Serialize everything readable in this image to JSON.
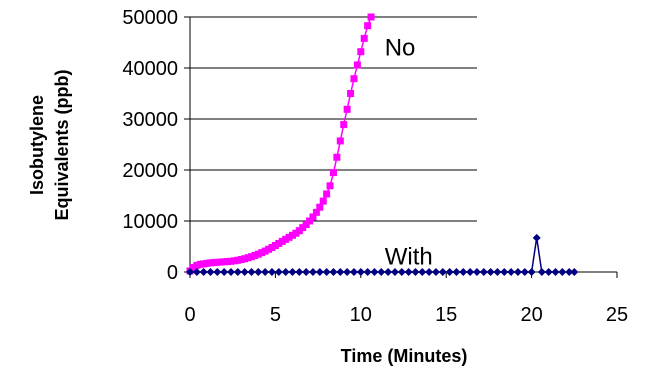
{
  "chart_data": {
    "type": "line",
    "title": "",
    "xlabel": "Time (Minutes)",
    "ylabel_lines": [
      "Isobutylene",
      "Equivalents (ppb)"
    ],
    "xlim": [
      0,
      25
    ],
    "ylim": [
      0,
      50000
    ],
    "x_ticks": [
      "0",
      "5",
      "10",
      "15",
      "20",
      "25"
    ],
    "y_ticks": [
      "0",
      "10000",
      "20000",
      "30000",
      "40000",
      "50000"
    ],
    "grid": "horizontal",
    "legend": "none",
    "annotations": [
      {
        "text": "No",
        "x": 11.4,
        "y": 44000
      },
      {
        "text": "With",
        "x": 11.4,
        "y": 3000
      }
    ],
    "series": [
      {
        "color": "#ff00ff",
        "marker": "square",
        "points": [
          [
            0,
            200
          ],
          [
            0.2,
            900
          ],
          [
            0.4,
            1300
          ],
          [
            0.6,
            1500
          ],
          [
            0.8,
            1600
          ],
          [
            1.0,
            1700
          ],
          [
            1.2,
            1800
          ],
          [
            1.4,
            1850
          ],
          [
            1.6,
            1900
          ],
          [
            1.8,
            1950
          ],
          [
            2.0,
            2000
          ],
          [
            2.2,
            2050
          ],
          [
            2.4,
            2100
          ],
          [
            2.6,
            2200
          ],
          [
            2.8,
            2300
          ],
          [
            3.0,
            2450
          ],
          [
            3.2,
            2600
          ],
          [
            3.4,
            2800
          ],
          [
            3.6,
            3000
          ],
          [
            3.8,
            3250
          ],
          [
            4.0,
            3500
          ],
          [
            4.2,
            3800
          ],
          [
            4.4,
            4100
          ],
          [
            4.6,
            4450
          ],
          [
            4.8,
            4800
          ],
          [
            5.0,
            5200
          ],
          [
            5.2,
            5600
          ],
          [
            5.4,
            6000
          ],
          [
            5.6,
            6400
          ],
          [
            5.8,
            6800
          ],
          [
            6.0,
            7200
          ],
          [
            6.2,
            7600
          ],
          [
            6.4,
            8100
          ],
          [
            6.6,
            8700
          ],
          [
            6.8,
            9300
          ],
          [
            7.0,
            10000
          ],
          [
            7.2,
            10800
          ],
          [
            7.4,
            11700
          ],
          [
            7.6,
            12700
          ],
          [
            7.8,
            13900
          ],
          [
            8.0,
            15300
          ],
          [
            8.2,
            16900
          ],
          [
            8.4,
            19500
          ],
          [
            8.6,
            22500
          ],
          [
            8.8,
            25700
          ],
          [
            9.0,
            28900
          ],
          [
            9.2,
            31900
          ],
          [
            9.4,
            35000
          ],
          [
            9.6,
            37900
          ],
          [
            9.8,
            40600
          ],
          [
            10.0,
            43200
          ],
          [
            10.2,
            45800
          ],
          [
            10.4,
            48300
          ],
          [
            10.6,
            50000
          ]
        ]
      },
      {
        "color": "#000080",
        "marker": "diamond",
        "points": [
          [
            0,
            0
          ],
          [
            0.4,
            0
          ],
          [
            0.8,
            0
          ],
          [
            1.2,
            0
          ],
          [
            1.6,
            0
          ],
          [
            2.0,
            0
          ],
          [
            2.4,
            0
          ],
          [
            2.8,
            0
          ],
          [
            3.2,
            0
          ],
          [
            3.6,
            0
          ],
          [
            4.0,
            0
          ],
          [
            4.4,
            0
          ],
          [
            4.8,
            0
          ],
          [
            5.2,
            0
          ],
          [
            5.6,
            0
          ],
          [
            6.0,
            0
          ],
          [
            6.4,
            0
          ],
          [
            6.8,
            0
          ],
          [
            7.2,
            0
          ],
          [
            7.6,
            0
          ],
          [
            8.0,
            0
          ],
          [
            8.4,
            0
          ],
          [
            8.8,
            0
          ],
          [
            9.2,
            0
          ],
          [
            9.6,
            0
          ],
          [
            10.0,
            0
          ],
          [
            10.4,
            0
          ],
          [
            10.8,
            0
          ],
          [
            11.2,
            0
          ],
          [
            11.6,
            0
          ],
          [
            12.0,
            0
          ],
          [
            12.4,
            0
          ],
          [
            12.8,
            0
          ],
          [
            13.2,
            0
          ],
          [
            13.6,
            0
          ],
          [
            14.0,
            0
          ],
          [
            14.4,
            0
          ],
          [
            14.8,
            0
          ],
          [
            15.2,
            0
          ],
          [
            15.6,
            0
          ],
          [
            16.0,
            0
          ],
          [
            16.4,
            0
          ],
          [
            16.8,
            0
          ],
          [
            17.2,
            0
          ],
          [
            17.6,
            0
          ],
          [
            18.0,
            0
          ],
          [
            18.4,
            0
          ],
          [
            18.8,
            0
          ],
          [
            19.2,
            0
          ],
          [
            19.6,
            0
          ],
          [
            20.0,
            0
          ],
          [
            20.3,
            6700
          ],
          [
            20.6,
            0
          ],
          [
            21.0,
            0
          ],
          [
            21.4,
            0
          ],
          [
            21.8,
            0
          ],
          [
            22.2,
            0
          ],
          [
            22.5,
            0
          ]
        ]
      }
    ]
  }
}
